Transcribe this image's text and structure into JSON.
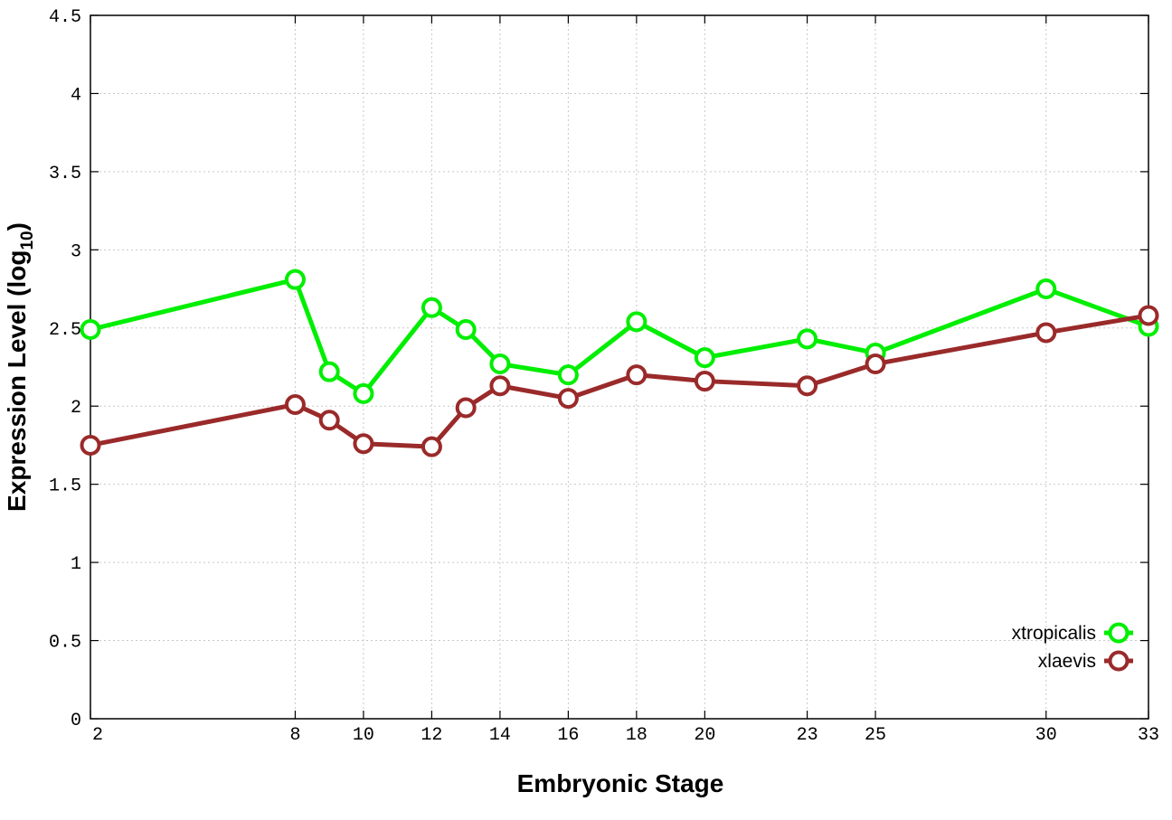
{
  "chart_data": {
    "type": "line",
    "title": "",
    "xlabel": "Embryonic Stage",
    "ylabel_main": "Expression Level (log",
    "ylabel_sub": "10",
    "ylabel_close": ")",
    "xlim": [
      2,
      33
    ],
    "ylim": [
      0,
      4.5
    ],
    "x_ticks": [
      2,
      8,
      10,
      12,
      14,
      16,
      18,
      20,
      23,
      25,
      30,
      33
    ],
    "y_ticks": [
      0,
      0.5,
      1,
      1.5,
      2,
      2.5,
      3,
      3.5,
      4,
      4.5
    ],
    "y_tick_labels": [
      "0",
      "0.5",
      "1",
      "1.5",
      "2",
      "2.5",
      "3",
      "3.5",
      "4",
      "4.5"
    ],
    "grid": true,
    "legend_position": "bottom-right",
    "x": [
      2,
      8,
      9,
      10,
      12,
      13,
      14,
      16,
      18,
      20,
      23,
      25,
      30,
      33
    ],
    "series": [
      {
        "name": "xtropicalis",
        "color": "#00ee00",
        "values": [
          2.49,
          2.81,
          2.22,
          2.08,
          2.63,
          2.49,
          2.27,
          2.2,
          2.54,
          2.31,
          2.43,
          2.34,
          2.75,
          2.51
        ]
      },
      {
        "name": "xlaevis",
        "color": "#9a2a2a",
        "values": [
          1.75,
          2.01,
          1.91,
          1.76,
          1.74,
          1.99,
          2.13,
          2.05,
          2.2,
          2.16,
          2.13,
          2.27,
          2.47,
          2.58
        ]
      }
    ]
  }
}
